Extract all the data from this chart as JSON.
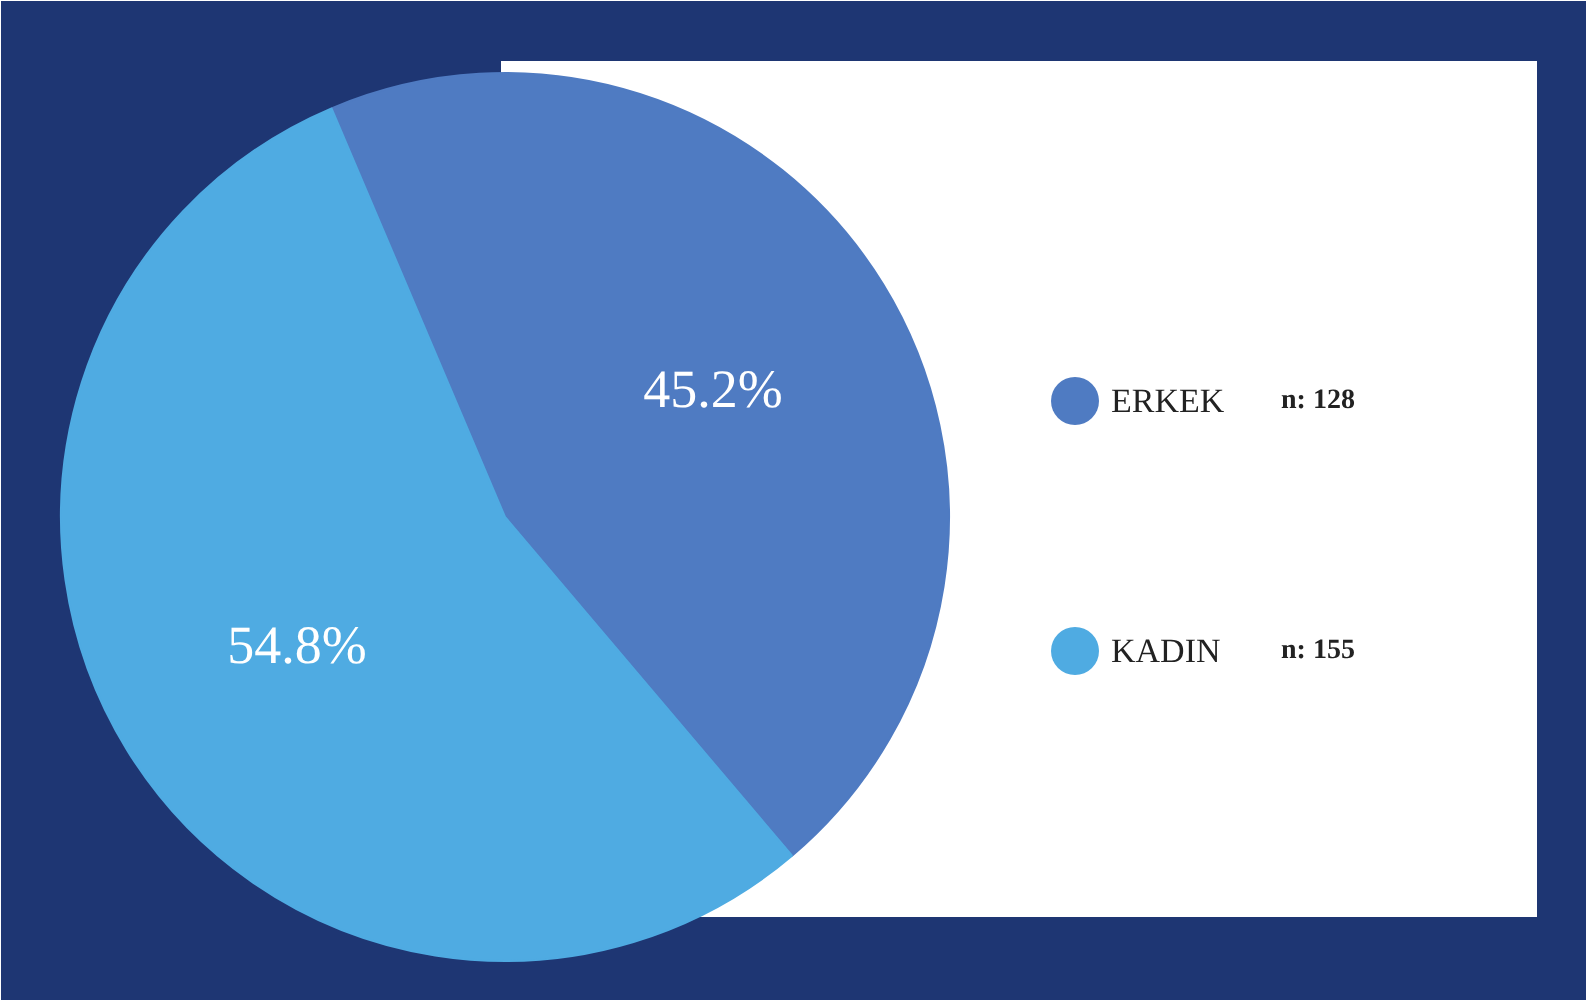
{
  "chart_data": {
    "type": "pie",
    "categories": [
      "ERKEK",
      "KADIN"
    ],
    "values": [
      45.2,
      54.8
    ],
    "colors": [
      "#4f7bc2",
      "#4fabe2"
    ],
    "value_labels": [
      "45.2%",
      "54.8%"
    ],
    "legend": "right",
    "annotations": [
      "n: 128",
      "n: 155"
    ]
  }
}
